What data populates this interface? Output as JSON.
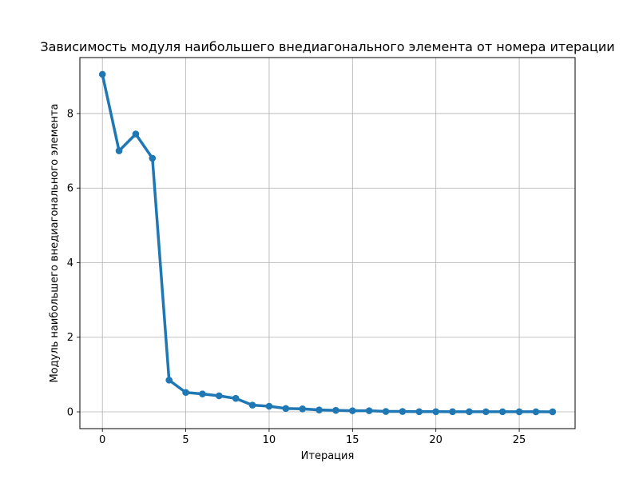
{
  "chart_data": {
    "type": "line",
    "title": "Зависимость модуля наибольшего внедиагонального элемента от номера итерации",
    "xlabel": "Итерация",
    "ylabel": "Модуль наибольшего внедиагонального элемента",
    "xlim": [
      -1.35,
      28.35
    ],
    "ylim": [
      -0.45,
      9.5
    ],
    "xticks": [
      0,
      5,
      10,
      15,
      20,
      25
    ],
    "yticks": [
      0,
      2,
      4,
      6,
      8
    ],
    "xtick_labels": [
      "0",
      "5",
      "10",
      "15",
      "20",
      "25"
    ],
    "ytick_labels": [
      "0",
      "2",
      "4",
      "6",
      "8"
    ],
    "grid": true,
    "series": [
      {
        "color": "#1f77b4",
        "x": [
          0,
          1,
          2,
          3,
          4,
          5,
          6,
          7,
          8,
          9,
          10,
          11,
          12,
          13,
          14,
          15,
          16,
          17,
          18,
          19,
          20,
          21,
          22,
          23,
          24,
          25,
          26,
          27
        ],
        "y": [
          9.05,
          7.0,
          7.45,
          6.8,
          0.85,
          0.52,
          0.48,
          0.43,
          0.36,
          0.18,
          0.15,
          0.09,
          0.08,
          0.05,
          0.04,
          0.03,
          0.03,
          0.01,
          0.01,
          0.005,
          0.005,
          0.004,
          0.004,
          0.003,
          0.003,
          0.002,
          0.002,
          0.001
        ]
      }
    ]
  }
}
